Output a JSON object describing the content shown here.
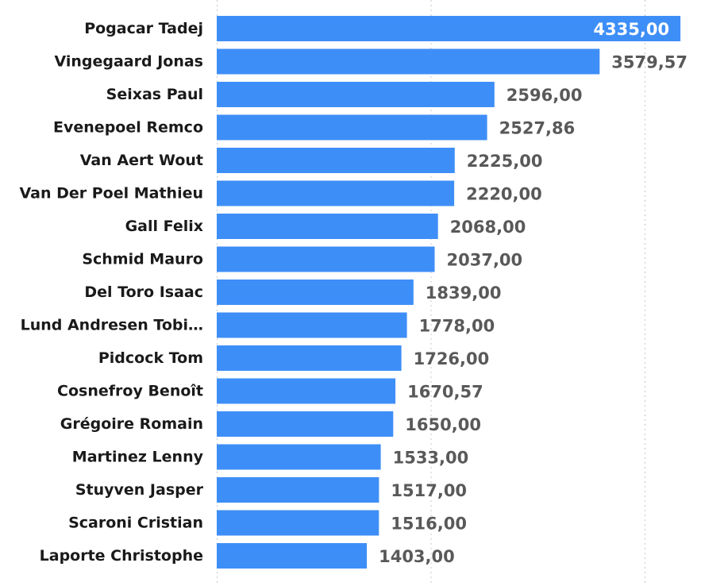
{
  "chart_data": {
    "type": "bar",
    "orientation": "horizontal",
    "title": "",
    "xlabel": "",
    "ylabel": "",
    "categories": [
      "Pogacar Tadej",
      "Vingegaard Jonas",
      "Seixas Paul",
      "Evenepoel Remco",
      "Van Aert Wout",
      "Van Der Poel Mathieu",
      "Gall Felix",
      "Schmid Mauro",
      "Del Toro Isaac",
      "Lund Andresen Tobi…",
      "Pidcock Tom",
      "Cosnefroy Benoît",
      "Grégoire Romain",
      "Martinez Lenny",
      "Stuyven Jasper",
      "Scaroni Cristian",
      "Laporte Christophe"
    ],
    "values": [
      4335.0,
      3579.57,
      2596.0,
      2527.86,
      2225.0,
      2220.0,
      2068.0,
      2037.0,
      1839.0,
      1778.0,
      1726.0,
      1670.57,
      1650.0,
      1533.0,
      1517.0,
      1516.0,
      1403.0
    ],
    "value_labels": [
      "4335,00",
      "3579,57",
      "2596,00",
      "2527,86",
      "2225,00",
      "2220,00",
      "2068,00",
      "2037,00",
      "1839,00",
      "1778,00",
      "1726,00",
      "1670,57",
      "1650,00",
      "1533,00",
      "1517,00",
      "1516,00",
      "1403,00"
    ],
    "xlim": [
      0,
      4500
    ],
    "gridlines_x": [
      0,
      2000,
      4000
    ],
    "grid": true,
    "legend": "none",
    "colors": {
      "bar": "#3e8ef7",
      "value_outside": "#595959",
      "value_inside": "#ffffff",
      "label": "#1a1a1a",
      "grid": "#c8c8c8"
    }
  }
}
